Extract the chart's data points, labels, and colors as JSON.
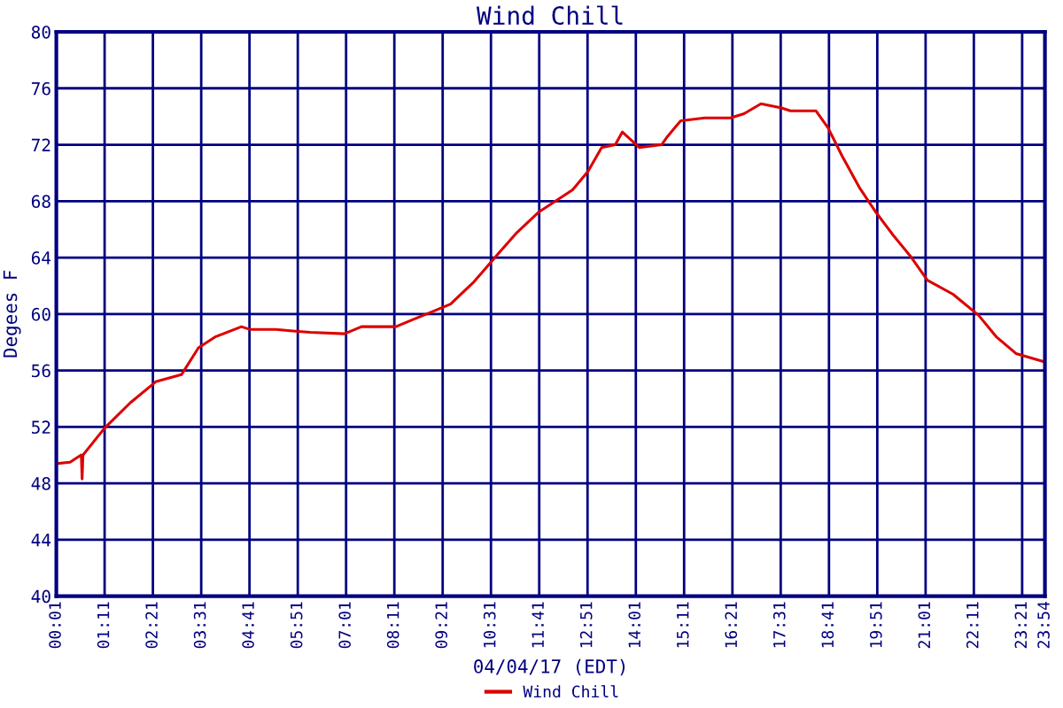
{
  "chart_data": {
    "type": "line",
    "title": "Wind Chill",
    "xlabel": "04/04/17 (EDT)",
    "ylabel": "Degees F",
    "x": [
      0.02,
      0.35,
      0.56,
      0.62,
      0.64,
      0.66,
      1.18,
      1.8,
      2.42,
      3.04,
      3.45,
      3.87,
      4.49,
      4.7,
      5.32,
      5.73,
      6.15,
      6.98,
      7.39,
      8.22,
      8.63,
      9.05,
      9.54,
      10.08,
      10.29,
      10.7,
      11.12,
      11.66,
      12.49,
      12.86,
      13.19,
      13.52,
      13.69,
      14.1,
      14.64,
      14.76,
      15.1,
      15.68,
      16.3,
      16.63,
      17.04,
      17.54,
      17.75,
      18.37,
      18.66,
      19.0,
      19.41,
      19.82,
      20.23,
      20.65,
      21.06,
      21.68,
      22.3,
      22.72,
      23.2,
      23.9
    ],
    "series": [
      {
        "name": "Wind Chill",
        "color": "#dd0000",
        "values": [
          49.4,
          49.5,
          49.9,
          50.0,
          48.3,
          50.0,
          51.9,
          53.7,
          55.2,
          55.7,
          57.6,
          58.4,
          59.1,
          58.9,
          58.9,
          58.8,
          58.7,
          58.6,
          59.1,
          59.1,
          59.6,
          60.1,
          60.7,
          62.2,
          62.9,
          64.3,
          65.7,
          67.2,
          68.8,
          70.1,
          71.8,
          72.0,
          72.9,
          71.8,
          72.0,
          72.5,
          73.7,
          73.9,
          73.9,
          74.2,
          74.9,
          74.6,
          74.4,
          74.4,
          73.2,
          71.2,
          69.0,
          67.2,
          65.6,
          64.1,
          62.4,
          61.4,
          59.9,
          58.4,
          57.2,
          56.6
        ]
      }
    ],
    "xlim": [
      0.017,
      23.9
    ],
    "xticks": [
      {
        "value": 0.017,
        "label": "00:01"
      },
      {
        "value": 1.183,
        "label": "01:11"
      },
      {
        "value": 2.35,
        "label": "02:21"
      },
      {
        "value": 3.517,
        "label": "03:31"
      },
      {
        "value": 4.683,
        "label": "04:41"
      },
      {
        "value": 5.85,
        "label": "05:51"
      },
      {
        "value": 7.017,
        "label": "07:01"
      },
      {
        "value": 8.183,
        "label": "08:11"
      },
      {
        "value": 9.35,
        "label": "09:21"
      },
      {
        "value": 10.517,
        "label": "10:31"
      },
      {
        "value": 11.683,
        "label": "11:41"
      },
      {
        "value": 12.85,
        "label": "12:51"
      },
      {
        "value": 14.017,
        "label": "14:01"
      },
      {
        "value": 15.183,
        "label": "15:11"
      },
      {
        "value": 16.35,
        "label": "16:21"
      },
      {
        "value": 17.517,
        "label": "17:31"
      },
      {
        "value": 18.683,
        "label": "18:41"
      },
      {
        "value": 19.85,
        "label": "19:51"
      },
      {
        "value": 21.017,
        "label": "21:01"
      },
      {
        "value": 22.183,
        "label": "22:11"
      },
      {
        "value": 23.35,
        "label": "23:21"
      },
      {
        "value": 23.9,
        "label": "23:54"
      }
    ],
    "ylim": [
      40,
      80
    ],
    "yticks": [
      40,
      44,
      48,
      52,
      56,
      60,
      64,
      68,
      72,
      76,
      80
    ],
    "grid": true,
    "legend": "bottom",
    "marker": "none",
    "line_style": "solid"
  }
}
